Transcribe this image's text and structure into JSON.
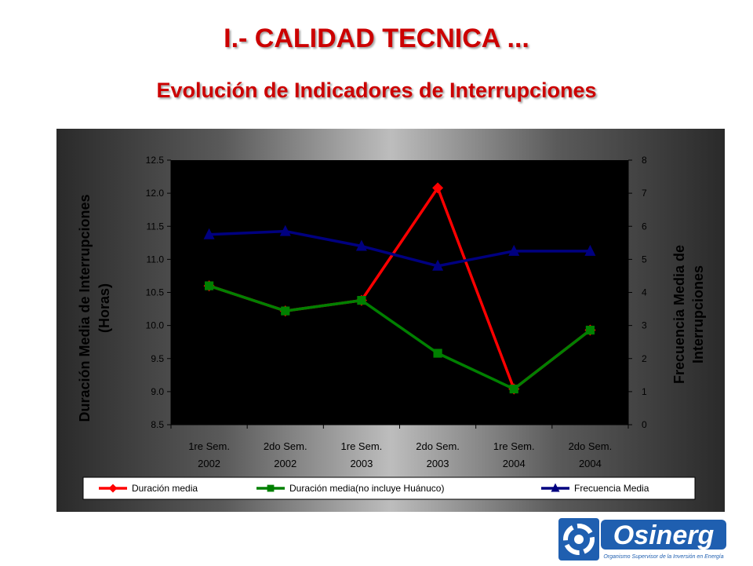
{
  "header": {
    "title": "I.- CALIDAD TECNICA ...",
    "subtitle": "Evolución de Indicadores de Interrupciones"
  },
  "logo": {
    "brand": "Osinerg",
    "tagline": "Organismo Supervisor de la Inversión en Energía"
  },
  "colors": {
    "series_red": "#ff0000",
    "series_green": "#008000",
    "series_blue": "#000080",
    "plot_bg": "#000000",
    "title_red": "#cc0000"
  },
  "chart_data": {
    "type": "line",
    "categories": [
      [
        "1re Sem.",
        "2002"
      ],
      [
        "2do Sem.",
        "2002"
      ],
      [
        "1re Sem.",
        "2003"
      ],
      [
        "2do Sem.",
        "2003"
      ],
      [
        "1re Sem.",
        "2004"
      ],
      [
        "2do Sem.",
        "2004"
      ]
    ],
    "ylabel_left": [
      "Duración Media de Interrupciones",
      "(Horas)"
    ],
    "ylabel_right": [
      "Frecuencia Media de",
      "Interrupciones"
    ],
    "ylim_left": [
      8.5,
      12.5
    ],
    "yticks_left": [
      "8.5",
      "9.0",
      "9.5",
      "10.0",
      "10.5",
      "11.0",
      "11.5",
      "12.0",
      "12.5"
    ],
    "ylim_right": [
      0,
      8
    ],
    "yticks_right": [
      "0",
      "1",
      "2",
      "3",
      "4",
      "5",
      "6",
      "7",
      "8"
    ],
    "grid": false,
    "legend_position": "bottom",
    "series": [
      {
        "name": "Duración media",
        "axis": "left",
        "marker": "diamond",
        "color": "#ff0000",
        "values": [
          10.6,
          10.22,
          10.38,
          12.08,
          9.04,
          9.93
        ]
      },
      {
        "name": "Duración media(no incluye Huánuco)",
        "axis": "left",
        "marker": "square",
        "color": "#008000",
        "values": [
          10.6,
          10.22,
          10.38,
          9.58,
          9.04,
          9.93
        ]
      },
      {
        "name": "Frecuencia Media",
        "axis": "right",
        "marker": "triangle",
        "color": "#000080",
        "values": [
          5.75,
          5.85,
          5.4,
          4.8,
          5.25,
          5.25
        ]
      }
    ]
  }
}
